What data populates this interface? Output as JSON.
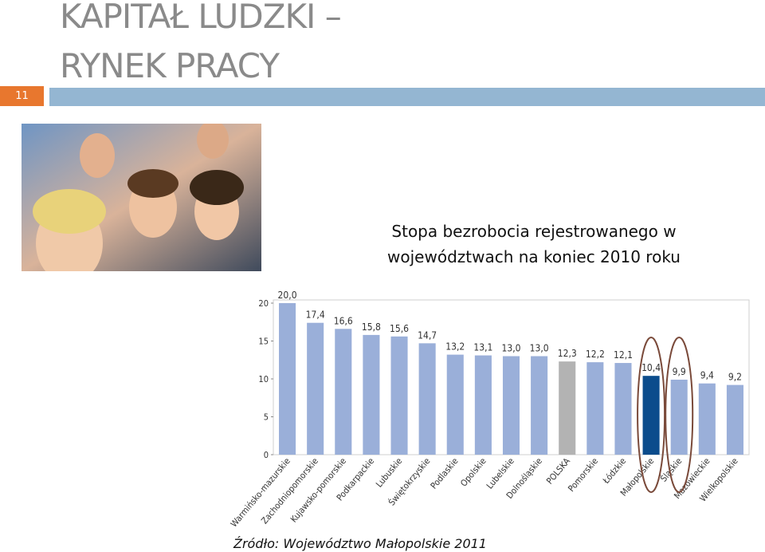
{
  "slide": {
    "number": "11",
    "title_lines": [
      "KAPITAŁ LUDZKI –",
      "RYNEK PRACY"
    ],
    "source": "Źródło: Województwo Małopolskie 2011"
  },
  "chart_data": {
    "type": "bar",
    "title": "Stopa bezrobocia rejestrowanego w województwach na koniec 2010 roku",
    "categories": [
      "Warmińsko-mazurskie",
      "Zachodniopomorskie",
      "Kujawsko-pomorskie",
      "Podkarpackie",
      "Lubuskie",
      "Świętokrzyskie",
      "Podlaskie",
      "Opolskie",
      "Lubelskie",
      "Dolnośląskie",
      "POLSKA",
      "Pomorskie",
      "Łódzkie",
      "Małopolskie",
      "Śląskie",
      "Mazowieckie",
      "Wielkopolskie"
    ],
    "values": [
      20.0,
      17.4,
      16.6,
      15.8,
      15.6,
      14.7,
      13.2,
      13.1,
      13.0,
      13.0,
      12.3,
      12.2,
      12.1,
      10.4,
      9.9,
      9.4,
      9.2
    ],
    "value_labels": [
      "20,0",
      "17,4",
      "16,6",
      "15,8",
      "15,6",
      "14,7",
      "13,2",
      "13,1",
      "13,0",
      "13,0",
      "12,3",
      "12,2",
      "12,1",
      "10,4",
      "9,9",
      "9,4",
      "9,2"
    ],
    "colors": [
      "#9aafd9",
      "#9aafd9",
      "#9aafd9",
      "#9aafd9",
      "#9aafd9",
      "#9aafd9",
      "#9aafd9",
      "#9aafd9",
      "#9aafd9",
      "#9aafd9",
      "#b3b3b3",
      "#9aafd9",
      "#9aafd9",
      "#0b4c8c",
      "#9aafd9",
      "#9aafd9",
      "#9aafd9"
    ],
    "ylim": [
      0,
      20
    ],
    "yticks": [
      0,
      5,
      10,
      15,
      20
    ],
    "grid": false
  }
}
